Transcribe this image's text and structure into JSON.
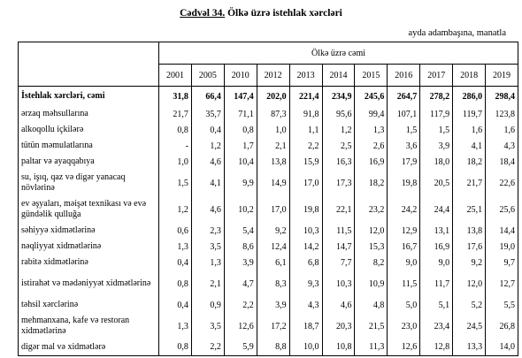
{
  "header": {
    "title_number": "Cədvəl 34.",
    "title": "Ölkə üzrə istehlak xərcləri",
    "unit": "ayda adambaşına, manatla"
  },
  "table": {
    "group_header": "Ölkə üzrə cəmi",
    "years": [
      "2001",
      "2005",
      "2010",
      "2012",
      "2013",
      "2014",
      "2015",
      "2016",
      "2017",
      "2018",
      "2019"
    ],
    "rows": [
      {
        "label": "İstehlak xərcləri, cəmi",
        "values": [
          "31,8",
          "66,4",
          "147,4",
          "202,0",
          "221,4",
          "234,9",
          "245,6",
          "264,7",
          "278,2",
          "286,0",
          "298,4"
        ]
      },
      {
        "label": "ərzaq məhsullarına",
        "values": [
          "21,7",
          "35,7",
          "71,1",
          "87,3",
          "91,8",
          "95,6",
          "99,4",
          "107,1",
          "117,9",
          "119,7",
          "123,8"
        ]
      },
      {
        "label": "alkoqollu içkilərə",
        "values": [
          "0,8",
          "0,4",
          "0,8",
          "1,0",
          "1,1",
          "1,2",
          "1,3",
          "1,5",
          "1,5",
          "1,6",
          "1,6"
        ]
      },
      {
        "label": "tütün məmulatlarına",
        "values": [
          "-",
          "1,2",
          "1,7",
          "2,1",
          "2,2",
          "2,5",
          "2,6",
          "3,6",
          "3,9",
          "4,1",
          "4,3"
        ]
      },
      {
        "label": "paltar və ayaqqabıya",
        "values": [
          "1,0",
          "4,6",
          "10,4",
          "13,8",
          "15,9",
          "16,3",
          "16,9",
          "17,9",
          "18,0",
          "18,2",
          "18,4"
        ]
      },
      {
        "label": "su, işıq, qaz və digər yanacaq növlərinə",
        "values": [
          "1,5",
          "4,1",
          "9,9",
          "14,9",
          "17,0",
          "17,3",
          "18,2",
          "19,8",
          "20,5",
          "21,7",
          "22,6"
        ]
      },
      {
        "label": "ev əşyaları, məişət texnikası və evə gündəlik qulluğa",
        "values": [
          "1,2",
          "4,6",
          "10,2",
          "17,0",
          "19,8",
          "22,1",
          "23,2",
          "24,2",
          "24,4",
          "25,1",
          "25,6"
        ]
      },
      {
        "label": "səhiyyə xidmətlərinə",
        "values": [
          "0,6",
          "2,3",
          "5,4",
          "9,2",
          "10,3",
          "11,5",
          "12,0",
          "12,9",
          "13,1",
          "13,8",
          "14,4"
        ]
      },
      {
        "label": "nəqliyyat xidmətlərinə",
        "values": [
          "1,3",
          "3,5",
          "8,6",
          "12,4",
          "14,2",
          "14,7",
          "15,3",
          "16,7",
          "16,9",
          "17,6",
          "19,0"
        ]
      },
      {
        "label": "rabitə xidmətlərinə",
        "values": [
          "0,4",
          "1,3",
          "3,9",
          "6,1",
          "6,8",
          "7,7",
          "8,2",
          "9,0",
          "9,0",
          "9,2",
          "9,7"
        ]
      },
      {
        "label": "istirahət və mədəniyyət xidmətlərinə",
        "values": [
          "0,8",
          "2,1",
          "4,7",
          "8,3",
          "9,3",
          "10,3",
          "10,9",
          "11,5",
          "11,7",
          "12,0",
          "12,7"
        ]
      },
      {
        "label": "təhsil xərclərinə",
        "values": [
          "0,4",
          "0,9",
          "2,2",
          "3,9",
          "4,3",
          "4,6",
          "4,8",
          "5,0",
          "5,1",
          "5,2",
          "5,5"
        ]
      },
      {
        "label": "mehmanxana, kafe və restoran xidmətlərinə",
        "values": [
          "1,3",
          "3,5",
          "12,6",
          "17,2",
          "18,7",
          "20,3",
          "21,5",
          "23,0",
          "23,4",
          "24,5",
          "26,8"
        ]
      },
      {
        "label": "digər mal və xidmətlərə",
        "values": [
          "0,8",
          "2,2",
          "5,9",
          "8,8",
          "10,0",
          "10,8",
          "11,3",
          "12,6",
          "12,8",
          "13,3",
          "14,0"
        ]
      }
    ]
  }
}
